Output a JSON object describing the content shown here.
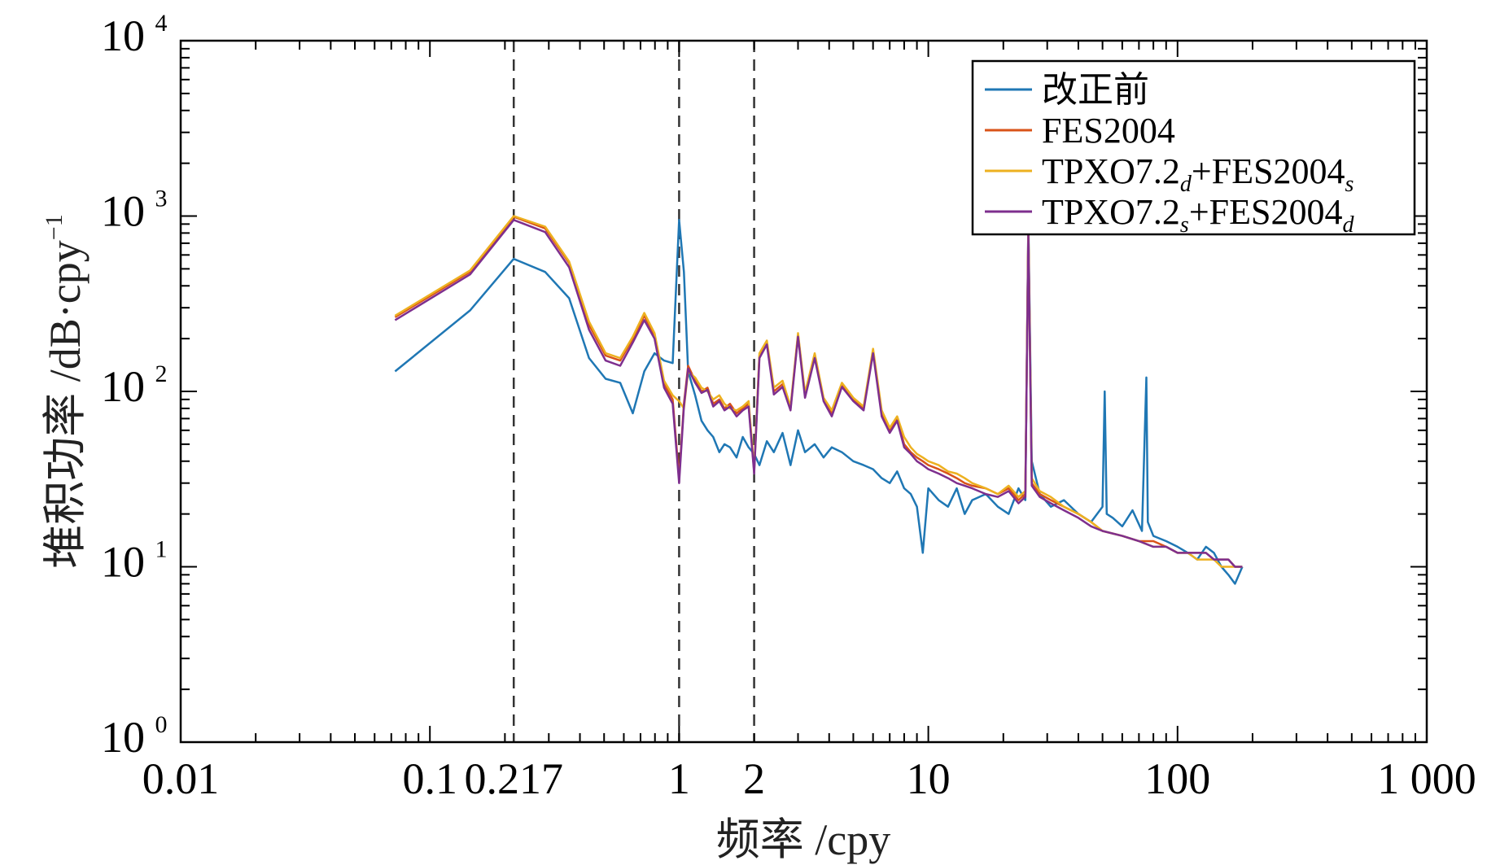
{
  "chart_data": {
    "type": "line",
    "title": "",
    "xlabel": "频率 /cpy",
    "ylabel": "堆积功率 /dB·cpy",
    "ylabel_exponent": "−1",
    "xscale": "log",
    "yscale": "log",
    "xlim": [
      0.01,
      1000
    ],
    "ylim": [
      1,
      10000
    ],
    "x_ticks": [
      {
        "value": 0.01,
        "label": "0.01"
      },
      {
        "value": 0.1,
        "label": "0.1"
      },
      {
        "value": 0.217,
        "label": "0.217"
      },
      {
        "value": 1,
        "label": "1"
      },
      {
        "value": 2,
        "label": "2"
      },
      {
        "value": 10,
        "label": "10"
      },
      {
        "value": 100,
        "label": "100"
      },
      {
        "value": 1000,
        "label": "1 000"
      }
    ],
    "y_ticks": [
      {
        "value": 1,
        "base": "10",
        "exp": "0"
      },
      {
        "value": 10,
        "base": "10",
        "exp": "1"
      },
      {
        "value": 100,
        "base": "10",
        "exp": "2"
      },
      {
        "value": 1000,
        "base": "10",
        "exp": "3"
      },
      {
        "value": 10000,
        "base": "10",
        "exp": "4"
      }
    ],
    "reference_lines_x": [
      0.217,
      1,
      2
    ],
    "legend_position": "top-right",
    "legend": [
      {
        "name": "改正前",
        "base": "改正前",
        "sub1": "",
        "mid": "",
        "sub2": "",
        "color": "#1f77b4"
      },
      {
        "name": "FES2004",
        "base": "FES2004",
        "sub1": "",
        "mid": "",
        "sub2": "",
        "color": "#d95319"
      },
      {
        "name": "TPXO7.2d+FES2004s",
        "base": "TPXO7.2",
        "sub1": "d",
        "mid": "+FES2004",
        "sub2": "s",
        "color": "#edb120"
      },
      {
        "name": "TPXO7.2s+FES2004d",
        "base": "TPXO7.2",
        "sub1": "s",
        "mid": "+FES2004",
        "sub2": "d",
        "color": "#7e2f8e"
      }
    ],
    "series": [
      {
        "name": "改正前",
        "color": "#1f77b4",
        "x": [
          0.0725,
          0.145,
          0.217,
          0.29,
          0.362,
          0.435,
          0.507,
          0.58,
          0.652,
          0.725,
          0.797,
          0.87,
          0.942,
          1.0,
          1.045,
          1.087,
          1.16,
          1.23,
          1.3,
          1.37,
          1.45,
          1.52,
          1.6,
          1.7,
          1.8,
          1.9,
          2.0,
          2.1,
          2.25,
          2.4,
          2.6,
          2.8,
          3.0,
          3.2,
          3.5,
          3.8,
          4.1,
          4.5,
          5.0,
          5.5,
          6.0,
          6.5,
          7.0,
          7.5,
          8.0,
          8.5,
          9.0,
          9.5,
          10,
          11,
          12,
          13,
          14,
          15,
          17,
          19,
          21,
          23,
          24.5,
          25.2,
          26,
          28,
          31,
          35,
          40,
          45,
          50,
          51,
          52,
          55,
          60,
          66,
          72,
          75,
          76,
          80,
          90,
          100,
          110,
          120,
          130,
          140,
          150,
          160,
          170,
          182
        ],
        "y": [
          130,
          290,
          570,
          480,
          340,
          155,
          118,
          112,
          75,
          130,
          165,
          150,
          145,
          950,
          480,
          130,
          95,
          68,
          60,
          55,
          45,
          50,
          48,
          42,
          55,
          48,
          44,
          38,
          52,
          45,
          58,
          38,
          60,
          45,
          50,
          42,
          48,
          45,
          40,
          38,
          36,
          32,
          30,
          35,
          28,
          26,
          22,
          12,
          28,
          24,
          22,
          28,
          20,
          24,
          26,
          22,
          20,
          28,
          24,
          950,
          40,
          26,
          22,
          24,
          20,
          18,
          22,
          100,
          20,
          19,
          17,
          21,
          16,
          120,
          18,
          15,
          14,
          13,
          12,
          11,
          13,
          12,
          10,
          9,
          8,
          10
        ]
      },
      {
        "name": "FES2004",
        "color": "#d95319",
        "x": [
          0.0725,
          0.145,
          0.217,
          0.29,
          0.362,
          0.435,
          0.507,
          0.58,
          0.652,
          0.725,
          0.797,
          0.87,
          0.942,
          1.0,
          1.045,
          1.087,
          1.16,
          1.23,
          1.3,
          1.37,
          1.45,
          1.52,
          1.6,
          1.7,
          1.8,
          1.9,
          2.0,
          2.1,
          2.25,
          2.4,
          2.6,
          2.8,
          3.0,
          3.2,
          3.5,
          3.8,
          4.1,
          4.5,
          5.0,
          5.5,
          6.0,
          6.5,
          7.0,
          7.5,
          8.0,
          8.5,
          9.0,
          9.5,
          10,
          11,
          12,
          13,
          14,
          15,
          17,
          19,
          21,
          23,
          24.5,
          25.2,
          26,
          28,
          31,
          35,
          40,
          45,
          50,
          60,
          70,
          80,
          90,
          100,
          110,
          120,
          130,
          140,
          150,
          160,
          170,
          182
        ],
        "y": [
          265,
          480,
          990,
          850,
          540,
          240,
          160,
          150,
          200,
          270,
          210,
          110,
          90,
          32,
          85,
          140,
          115,
          100,
          105,
          85,
          90,
          80,
          85,
          75,
          80,
          85,
          35,
          160,
          190,
          100,
          110,
          80,
          210,
          95,
          160,
          90,
          75,
          110,
          90,
          80,
          170,
          75,
          60,
          70,
          50,
          45,
          42,
          40,
          38,
          36,
          34,
          32,
          30,
          29,
          28,
          26,
          28,
          24,
          26,
          900,
          30,
          26,
          24,
          22,
          20,
          18,
          16,
          15,
          14,
          14,
          13,
          12,
          12,
          12,
          12,
          11,
          11,
          11,
          10,
          10
        ]
      },
      {
        "name": "TPXO7.2d+FES2004s",
        "color": "#edb120",
        "x": [
          0.0725,
          0.145,
          0.217,
          0.29,
          0.362,
          0.435,
          0.507,
          0.58,
          0.652,
          0.725,
          0.797,
          0.87,
          0.942,
          1.0,
          1.045,
          1.087,
          1.16,
          1.23,
          1.3,
          1.37,
          1.45,
          1.52,
          1.6,
          1.7,
          1.8,
          1.9,
          2.0,
          2.1,
          2.25,
          2.4,
          2.6,
          2.8,
          3.0,
          3.2,
          3.5,
          3.8,
          4.1,
          4.5,
          5.0,
          5.5,
          6.0,
          6.5,
          7.0,
          7.5,
          8.0,
          8.5,
          9.0,
          9.5,
          10,
          11,
          12,
          13,
          14,
          15,
          17,
          19,
          21,
          23,
          24.5,
          25.2,
          26,
          28,
          31,
          35,
          40,
          45,
          50,
          60,
          70,
          80,
          90,
          100,
          110,
          120,
          130,
          140,
          150,
          160,
          170,
          182
        ],
        "y": [
          270,
          490,
          1000,
          870,
          550,
          250,
          165,
          155,
          205,
          280,
          215,
          115,
          95,
          88,
          80,
          130,
          120,
          105,
          100,
          90,
          95,
          85,
          80,
          78,
          82,
          88,
          36,
          165,
          195,
          105,
          115,
          82,
          215,
          98,
          165,
          92,
          78,
          112,
          92,
          82,
          175,
          78,
          62,
          72,
          55,
          48,
          44,
          42,
          40,
          38,
          35,
          34,
          32,
          30,
          28,
          26,
          29,
          25,
          27,
          850,
          32,
          27,
          25,
          22,
          20,
          18,
          16,
          15,
          14,
          13,
          13,
          12,
          12,
          11,
          11,
          11,
          10,
          10,
          10,
          10
        ]
      },
      {
        "name": "TPXO7.2s+FES2004d",
        "color": "#7e2f8e",
        "x": [
          0.0725,
          0.145,
          0.217,
          0.29,
          0.362,
          0.435,
          0.507,
          0.58,
          0.652,
          0.725,
          0.797,
          0.87,
          0.942,
          1.0,
          1.045,
          1.087,
          1.16,
          1.23,
          1.3,
          1.37,
          1.45,
          1.52,
          1.6,
          1.7,
          1.8,
          1.9,
          2.0,
          2.1,
          2.25,
          2.4,
          2.6,
          2.8,
          3.0,
          3.2,
          3.5,
          3.8,
          4.1,
          4.5,
          5.0,
          5.5,
          6.0,
          6.5,
          7.0,
          7.5,
          8.0,
          8.5,
          9.0,
          9.5,
          10,
          11,
          12,
          13,
          14,
          15,
          17,
          19,
          21,
          23,
          24.5,
          25.2,
          26,
          28,
          31,
          35,
          40,
          45,
          50,
          60,
          70,
          80,
          90,
          100,
          110,
          120,
          130,
          140,
          150,
          160,
          170,
          182
        ],
        "y": [
          255,
          465,
          950,
          810,
          510,
          225,
          150,
          140,
          190,
          255,
          200,
          105,
          85,
          30,
          82,
          135,
          112,
          98,
          102,
          82,
          88,
          78,
          82,
          72,
          78,
          82,
          34,
          155,
          185,
          96,
          106,
          78,
          205,
          92,
          155,
          88,
          72,
          106,
          88,
          78,
          165,
          72,
          58,
          68,
          48,
          44,
          40,
          38,
          36,
          34,
          32,
          30,
          29,
          28,
          26,
          25,
          27,
          23,
          25,
          800,
          29,
          25,
          23,
          21,
          19,
          17,
          16,
          15,
          14,
          13,
          13,
          12,
          12,
          12,
          12,
          11,
          11,
          11,
          10,
          10
        ]
      }
    ]
  }
}
